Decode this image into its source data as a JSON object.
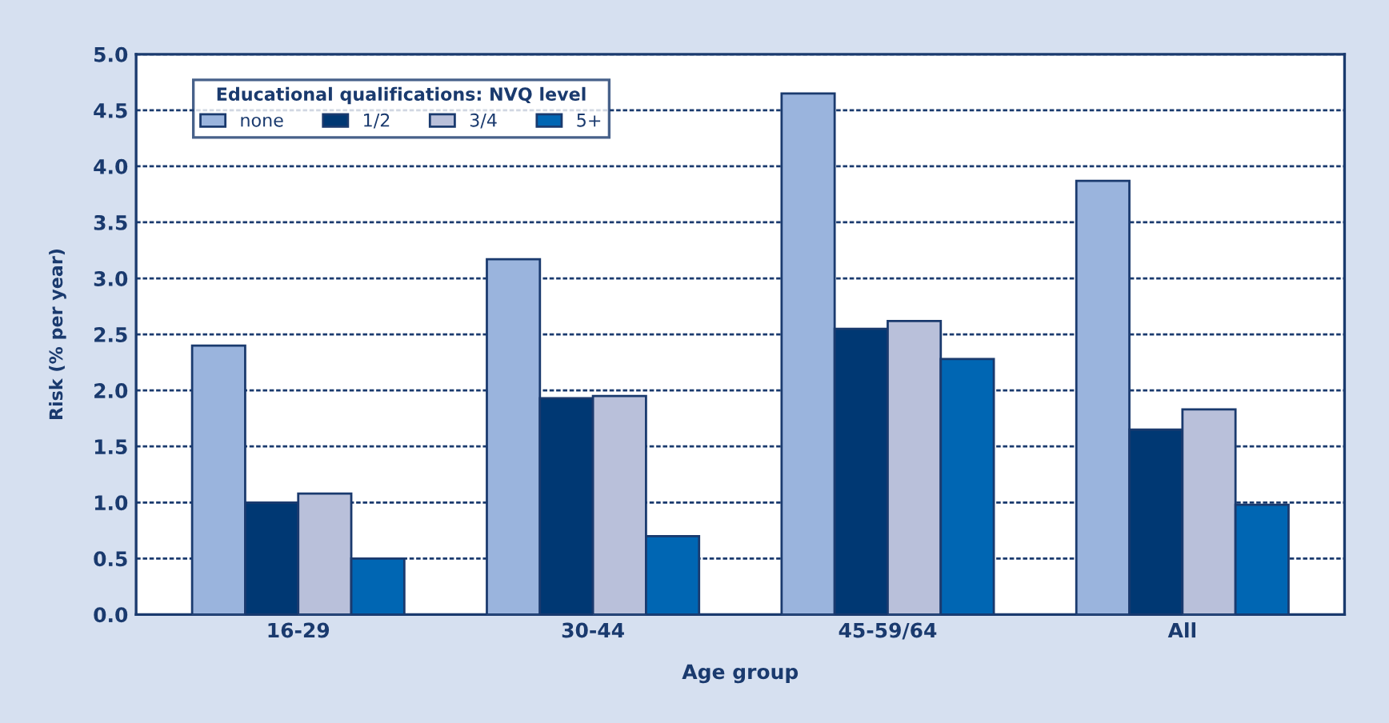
{
  "chart_data": {
    "type": "bar",
    "xlabel": "Age group",
    "ylabel": "Risk (% per year)",
    "legend_title": "Educational qualifications: NVQ level",
    "categories": [
      "16-29",
      "30-44",
      "45-59/64",
      "All"
    ],
    "series": [
      {
        "name": "none",
        "color": "#9ab4dd",
        "values": [
          2.4,
          3.17,
          4.65,
          3.87
        ]
      },
      {
        "name": "1/2",
        "color": "#003873",
        "values": [
          1.0,
          1.93,
          2.55,
          1.65
        ]
      },
      {
        "name": "3/4",
        "color": "#b9c0da",
        "values": [
          1.08,
          1.95,
          2.62,
          1.83
        ]
      },
      {
        "name": "5+",
        "color": "#0066b3",
        "values": [
          0.5,
          0.7,
          2.28,
          0.98
        ]
      }
    ],
    "ylim": [
      0,
      5
    ],
    "yticks": [
      {
        "value": 0,
        "label": "0.0"
      },
      {
        "value": 0.5,
        "label": "0.5"
      },
      {
        "value": 1,
        "label": "1.0"
      },
      {
        "value": 1.5,
        "label": "1.5"
      },
      {
        "value": 2,
        "label": "2.0"
      },
      {
        "value": 2.5,
        "label": "2.5"
      },
      {
        "value": 3,
        "label": "3.0"
      },
      {
        "value": 3.5,
        "label": "3.5"
      },
      {
        "value": 4,
        "label": "4.0"
      },
      {
        "value": 4.5,
        "label": "4.5"
      },
      {
        "value": 5,
        "label": "5.0"
      }
    ],
    "grid": "y",
    "legend": "top left"
  }
}
